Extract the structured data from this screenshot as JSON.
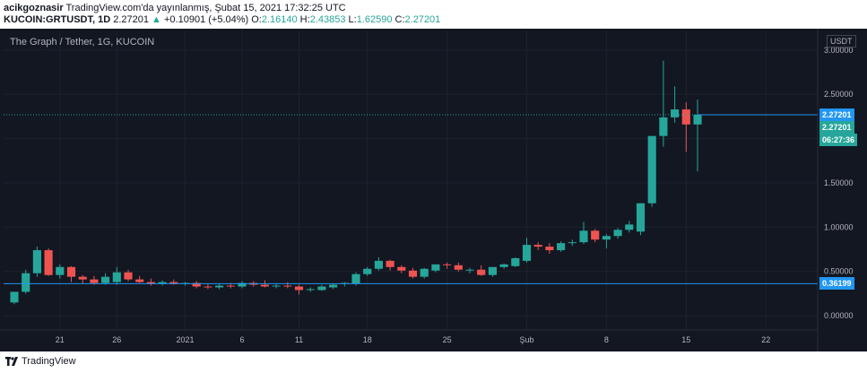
{
  "header": {
    "author": "acikgoznasir",
    "published": " TradingView.com'da yayınlanmış, Şubat 15, 2021 17:32:25 UTC",
    "symbol": "KUCOIN:GRTUSDT, 1D",
    "price": " 2.27201",
    "arrow": " ▲ ",
    "change": "+0.10901 (+5.04%)",
    "o_label": " O:",
    "o_value": "2.16140",
    "h_label": " H:",
    "h_value": "2.43853",
    "l_label": " L:",
    "l_value": "1.62590",
    "c_label": " C:",
    "c_value": "2.27201"
  },
  "chart_title": "The Graph / Tether, 1G, KUCOIN",
  "unit_label": "USDT",
  "price_labels": {
    "current": "2.27201",
    "close": "2.27201",
    "countdown": "06:27:36",
    "line": "0.36199"
  },
  "footer": {
    "brand": "TradingView"
  },
  "colors": {
    "background": "#131722",
    "up": "#26a69a",
    "down": "#ef5350",
    "line": "#2196f3",
    "text": "#b2b5be"
  },
  "chart_data": {
    "type": "candlestick",
    "ylim": [
      -0.1,
      3.12
    ],
    "y_ticks": [
      "3.00000",
      "2.50000",
      "2.00000",
      "1.50000",
      "1.00000",
      "0.50000",
      "0.00000"
    ],
    "x_ticks": [
      "21",
      "26",
      "2021",
      "6",
      "11",
      "18",
      "25",
      "Şub",
      "8",
      "15",
      "22"
    ],
    "horizontal_line": 0.36199,
    "candles": [
      {
        "o": 0.15,
        "h": 0.27,
        "l": 0.13,
        "c": 0.27
      },
      {
        "o": 0.27,
        "h": 0.52,
        "l": 0.25,
        "c": 0.48
      },
      {
        "o": 0.48,
        "h": 0.78,
        "l": 0.44,
        "c": 0.74
      },
      {
        "o": 0.74,
        "h": 0.76,
        "l": 0.45,
        "c": 0.46
      },
      {
        "o": 0.46,
        "h": 0.58,
        "l": 0.42,
        "c": 0.55
      },
      {
        "o": 0.55,
        "h": 0.56,
        "l": 0.38,
        "c": 0.44
      },
      {
        "o": 0.44,
        "h": 0.46,
        "l": 0.36,
        "c": 0.41
      },
      {
        "o": 0.41,
        "h": 0.45,
        "l": 0.35,
        "c": 0.37
      },
      {
        "o": 0.37,
        "h": 0.48,
        "l": 0.35,
        "c": 0.44
      },
      {
        "o": 0.38,
        "h": 0.55,
        "l": 0.35,
        "c": 0.49
      },
      {
        "o": 0.49,
        "h": 0.52,
        "l": 0.39,
        "c": 0.41
      },
      {
        "o": 0.41,
        "h": 0.45,
        "l": 0.37,
        "c": 0.38
      },
      {
        "o": 0.38,
        "h": 0.42,
        "l": 0.34,
        "c": 0.36
      },
      {
        "o": 0.36,
        "h": 0.4,
        "l": 0.34,
        "c": 0.38
      },
      {
        "o": 0.38,
        "h": 0.41,
        "l": 0.35,
        "c": 0.36
      },
      {
        "o": 0.36,
        "h": 0.38,
        "l": 0.34,
        "c": 0.37
      },
      {
        "o": 0.37,
        "h": 0.39,
        "l": 0.31,
        "c": 0.33
      },
      {
        "o": 0.33,
        "h": 0.36,
        "l": 0.3,
        "c": 0.32
      },
      {
        "o": 0.32,
        "h": 0.36,
        "l": 0.3,
        "c": 0.34
      },
      {
        "o": 0.34,
        "h": 0.37,
        "l": 0.31,
        "c": 0.33
      },
      {
        "o": 0.33,
        "h": 0.39,
        "l": 0.31,
        "c": 0.37
      },
      {
        "o": 0.37,
        "h": 0.39,
        "l": 0.33,
        "c": 0.35
      },
      {
        "o": 0.35,
        "h": 0.4,
        "l": 0.32,
        "c": 0.33
      },
      {
        "o": 0.33,
        "h": 0.36,
        "l": 0.31,
        "c": 0.34
      },
      {
        "o": 0.34,
        "h": 0.38,
        "l": 0.31,
        "c": 0.33
      },
      {
        "o": 0.33,
        "h": 0.35,
        "l": 0.24,
        "c": 0.29
      },
      {
        "o": 0.29,
        "h": 0.32,
        "l": 0.27,
        "c": 0.3
      },
      {
        "o": 0.29,
        "h": 0.35,
        "l": 0.28,
        "c": 0.33
      },
      {
        "o": 0.32,
        "h": 0.36,
        "l": 0.3,
        "c": 0.35
      },
      {
        "o": 0.36,
        "h": 0.38,
        "l": 0.33,
        "c": 0.37
      },
      {
        "o": 0.36,
        "h": 0.49,
        "l": 0.34,
        "c": 0.47
      },
      {
        "o": 0.47,
        "h": 0.55,
        "l": 0.45,
        "c": 0.53
      },
      {
        "o": 0.53,
        "h": 0.66,
        "l": 0.51,
        "c": 0.62
      },
      {
        "o": 0.62,
        "h": 0.63,
        "l": 0.51,
        "c": 0.55
      },
      {
        "o": 0.55,
        "h": 0.57,
        "l": 0.48,
        "c": 0.51
      },
      {
        "o": 0.51,
        "h": 0.54,
        "l": 0.42,
        "c": 0.44
      },
      {
        "o": 0.44,
        "h": 0.54,
        "l": 0.42,
        "c": 0.53
      },
      {
        "o": 0.51,
        "h": 0.58,
        "l": 0.49,
        "c": 0.58
      },
      {
        "o": 0.58,
        "h": 0.6,
        "l": 0.53,
        "c": 0.57
      },
      {
        "o": 0.57,
        "h": 0.6,
        "l": 0.5,
        "c": 0.52
      },
      {
        "o": 0.52,
        "h": 0.54,
        "l": 0.48,
        "c": 0.52
      },
      {
        "o": 0.52,
        "h": 0.57,
        "l": 0.45,
        "c": 0.46
      },
      {
        "o": 0.46,
        "h": 0.55,
        "l": 0.44,
        "c": 0.55
      },
      {
        "o": 0.55,
        "h": 0.59,
        "l": 0.53,
        "c": 0.58
      },
      {
        "o": 0.56,
        "h": 0.66,
        "l": 0.55,
        "c": 0.65
      },
      {
        "o": 0.62,
        "h": 0.88,
        "l": 0.6,
        "c": 0.8
      },
      {
        "o": 0.8,
        "h": 0.83,
        "l": 0.74,
        "c": 0.78
      },
      {
        "o": 0.78,
        "h": 0.82,
        "l": 0.7,
        "c": 0.74
      },
      {
        "o": 0.74,
        "h": 0.84,
        "l": 0.72,
        "c": 0.82
      },
      {
        "o": 0.82,
        "h": 0.86,
        "l": 0.79,
        "c": 0.83
      },
      {
        "o": 0.83,
        "h": 1.06,
        "l": 0.81,
        "c": 0.96
      },
      {
        "o": 0.96,
        "h": 0.98,
        "l": 0.83,
        "c": 0.86
      },
      {
        "o": 0.86,
        "h": 0.92,
        "l": 0.76,
        "c": 0.9
      },
      {
        "o": 0.9,
        "h": 0.99,
        "l": 0.87,
        "c": 0.97
      },
      {
        "o": 0.97,
        "h": 1.07,
        "l": 0.94,
        "c": 1.03
      },
      {
        "o": 0.95,
        "h": 1.27,
        "l": 0.91,
        "c": 1.27
      },
      {
        "o": 1.27,
        "h": 2.03,
        "l": 1.23,
        "c": 2.03
      },
      {
        "o": 2.03,
        "h": 2.88,
        "l": 1.91,
        "c": 2.24
      },
      {
        "o": 2.24,
        "h": 2.59,
        "l": 2.18,
        "c": 2.33
      },
      {
        "o": 2.33,
        "h": 2.41,
        "l": 1.85,
        "c": 2.16
      },
      {
        "o": 2.16,
        "h": 2.44,
        "l": 1.63,
        "c": 2.27
      }
    ]
  }
}
